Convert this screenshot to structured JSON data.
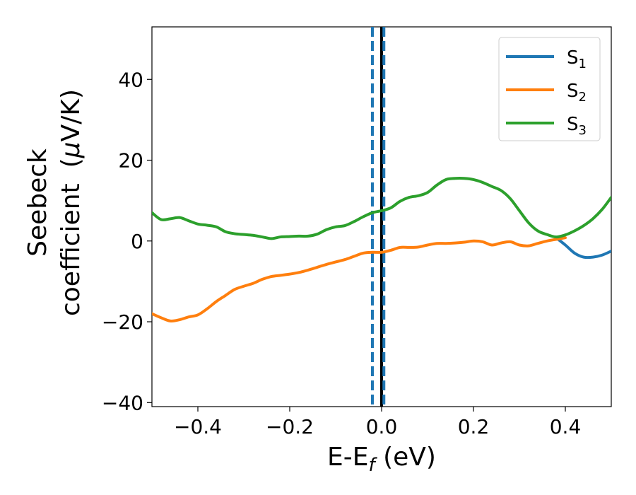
{
  "chart_data": {
    "type": "line",
    "xlim": [
      -0.5,
      0.5
    ],
    "ylim": [
      -41,
      53
    ],
    "xticks": [
      -0.4,
      -0.2,
      0.0,
      0.2,
      0.4
    ],
    "xtick_labels": [
      "−0.4",
      "−0.2",
      "0.0",
      "0.2",
      "0.4"
    ],
    "yticks": [
      -40,
      -20,
      0,
      20,
      40
    ],
    "ytick_labels": [
      "−40",
      "−20",
      "0",
      "20",
      "40"
    ],
    "xlabel": {
      "main": "E-E",
      "sub": "f",
      "unit": " (eV)"
    },
    "ylabel": {
      "line1": "Seebeck",
      "line2": "coefficient",
      "unit_open": "(",
      "unit_mu": "μ",
      "unit_rest": "V/K)"
    },
    "legend_position": "top-right",
    "vlines": [
      {
        "x": 0.0,
        "style": "solid",
        "color": "#000000",
        "name": "fermi-level"
      },
      {
        "x": -0.02,
        "style": "dashed",
        "color": "#1f77b4",
        "name": "bound-lower"
      },
      {
        "x": 0.005,
        "style": "dashed",
        "color": "#1f77b4",
        "name": "bound-upper"
      }
    ],
    "series": [
      {
        "name": "S",
        "sub": "1",
        "color": "#1f77b4",
        "x": [
          0.38,
          0.4,
          0.42,
          0.44,
          0.46,
          0.48,
          0.5
        ],
        "y": [
          0.8,
          -1.0,
          -3.0,
          -4.0,
          -4.0,
          -3.5,
          -2.5
        ]
      },
      {
        "name": "S",
        "sub": "2",
        "color": "#ff7f0e",
        "x": [
          -0.5,
          -0.48,
          -0.46,
          -0.44,
          -0.42,
          -0.4,
          -0.38,
          -0.36,
          -0.34,
          -0.32,
          -0.3,
          -0.28,
          -0.26,
          -0.24,
          -0.22,
          -0.2,
          -0.18,
          -0.16,
          -0.14,
          -0.12,
          -0.1,
          -0.08,
          -0.06,
          -0.04,
          -0.02,
          0.0,
          0.02,
          0.04,
          0.06,
          0.08,
          0.1,
          0.12,
          0.14,
          0.16,
          0.18,
          0.2,
          0.22,
          0.24,
          0.26,
          0.28,
          0.3,
          0.32,
          0.34,
          0.36,
          0.38,
          0.4
        ],
        "y": [
          -18.0,
          -19.0,
          -19.8,
          -19.5,
          -18.8,
          -18.3,
          -16.8,
          -15.0,
          -13.5,
          -12.0,
          -11.2,
          -10.5,
          -9.5,
          -8.8,
          -8.5,
          -8.2,
          -7.8,
          -7.2,
          -6.5,
          -5.8,
          -5.2,
          -4.6,
          -3.8,
          -3.0,
          -2.8,
          -2.8,
          -2.3,
          -1.6,
          -1.6,
          -1.5,
          -1.0,
          -0.6,
          -0.6,
          -0.5,
          -0.3,
          0.0,
          -0.2,
          -1.0,
          -0.5,
          -0.2,
          -1.0,
          -1.2,
          -0.6,
          0.0,
          0.4,
          0.8
        ]
      },
      {
        "name": "S",
        "sub": "3",
        "color": "#2ca02c",
        "x": [
          -0.5,
          -0.48,
          -0.46,
          -0.44,
          -0.42,
          -0.4,
          -0.38,
          -0.36,
          -0.34,
          -0.32,
          -0.3,
          -0.28,
          -0.26,
          -0.24,
          -0.22,
          -0.2,
          -0.18,
          -0.16,
          -0.14,
          -0.12,
          -0.1,
          -0.08,
          -0.06,
          -0.04,
          -0.02,
          0.0,
          0.02,
          0.04,
          0.06,
          0.08,
          0.1,
          0.12,
          0.14,
          0.16,
          0.18,
          0.2,
          0.22,
          0.24,
          0.26,
          0.28,
          0.3,
          0.32,
          0.34,
          0.36,
          0.38,
          0.4,
          0.42,
          0.44,
          0.46,
          0.48,
          0.5
        ],
        "y": [
          7.0,
          5.3,
          5.5,
          5.8,
          5.0,
          4.2,
          3.9,
          3.5,
          2.3,
          1.8,
          1.6,
          1.4,
          1.0,
          0.6,
          1.0,
          1.1,
          1.2,
          1.2,
          1.7,
          2.8,
          3.5,
          3.8,
          4.8,
          6.0,
          7.0,
          7.5,
          8.2,
          9.8,
          10.8,
          11.2,
          12.0,
          13.8,
          15.2,
          15.5,
          15.5,
          15.2,
          14.5,
          13.5,
          12.5,
          10.5,
          7.5,
          4.5,
          2.5,
          1.6,
          1.0,
          1.5,
          2.5,
          3.8,
          5.5,
          7.8,
          10.8
        ]
      }
    ]
  }
}
